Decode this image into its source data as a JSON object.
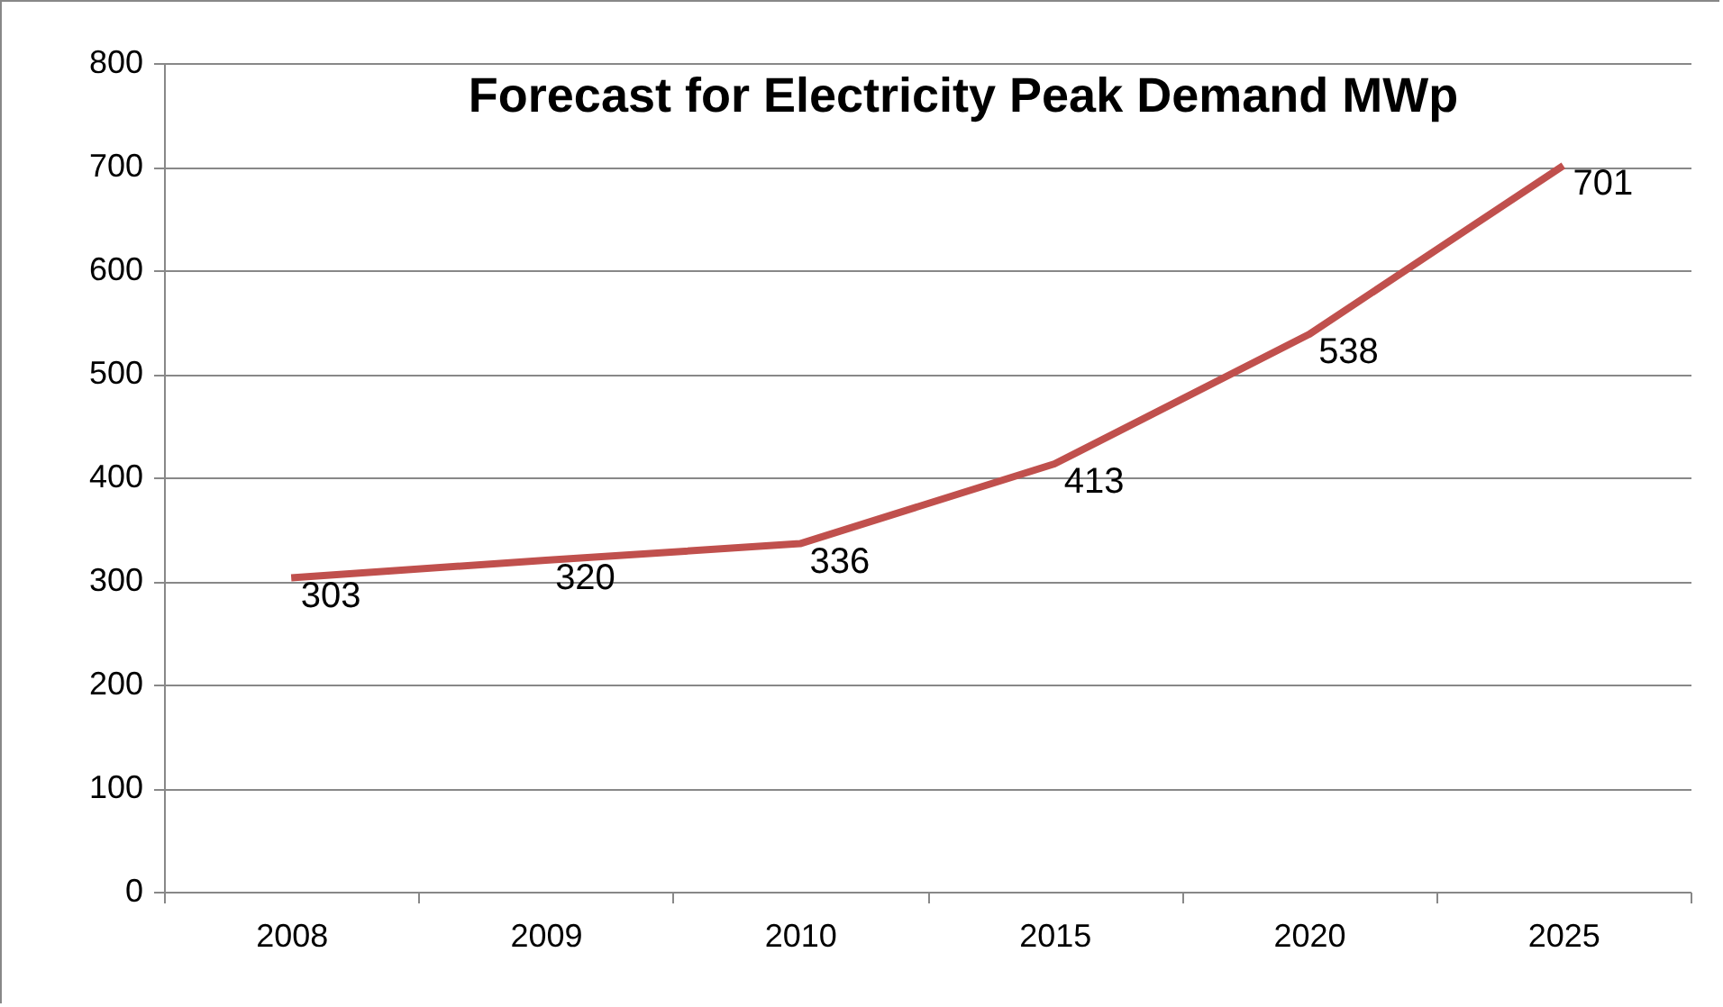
{
  "chart_data": {
    "type": "line",
    "title": "Forecast for Electricity Peak Demand MWp",
    "categories": [
      "2008",
      "2009",
      "2010",
      "2015",
      "2020",
      "2025"
    ],
    "values": [
      303,
      320,
      336,
      413,
      538,
      701
    ],
    "color": "#c0504d",
    "ylim": [
      0,
      800
    ],
    "yticks": [
      0,
      100,
      200,
      300,
      400,
      500,
      600,
      700,
      800
    ],
    "grid": "y",
    "data_labels": true
  }
}
